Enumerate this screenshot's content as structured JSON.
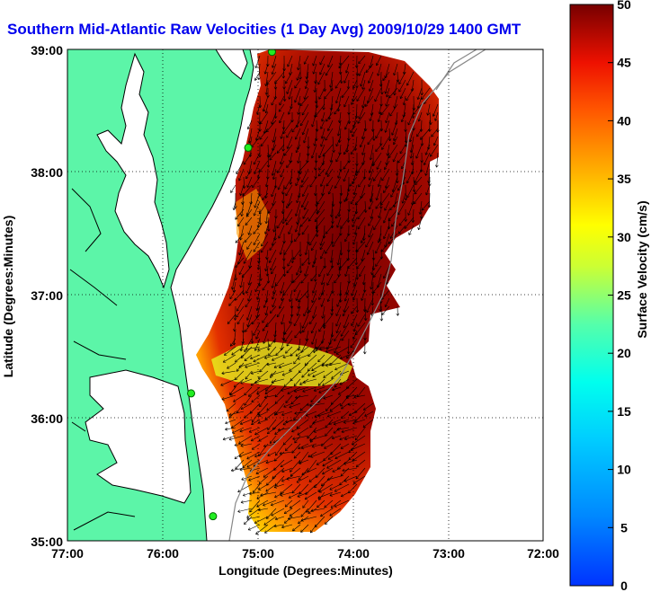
{
  "figure": {
    "title": "Southern Mid-Atlantic Raw Velocities (1 Day Avg) 2009/10/29 1400 GMT",
    "xlabel": "Longitude (Degrees:Minutes)",
    "ylabel": "Latitude (Degrees:Minutes)",
    "x_ticks": [
      "77:00",
      "76:00",
      "75:00",
      "74:00",
      "73:00",
      "72:00"
    ],
    "y_ticks": [
      "39:00",
      "38:00",
      "37:00",
      "36:00",
      "35:00"
    ],
    "x_range": [
      -77,
      -72
    ],
    "y_range": [
      35,
      39
    ],
    "grid": "dotted",
    "colors": {
      "land": "#5cf5a8",
      "water": "#ffffff",
      "coast": "#000000",
      "title": "#0000ee"
    }
  },
  "colorbar": {
    "label": "Surface Velocity (cm/s)",
    "ticks": [
      "0",
      "5",
      "10",
      "15",
      "20",
      "25",
      "30",
      "35",
      "40",
      "45",
      "50"
    ],
    "range": [
      0,
      50
    ],
    "colormap": "jet"
  },
  "stations": [
    {
      "lon": -74.85,
      "lat": 38.98
    },
    {
      "lon": -75.1,
      "lat": 38.2
    },
    {
      "lon": -75.7,
      "lat": 36.2
    },
    {
      "lon": -75.47,
      "lat": 35.2
    }
  ]
}
